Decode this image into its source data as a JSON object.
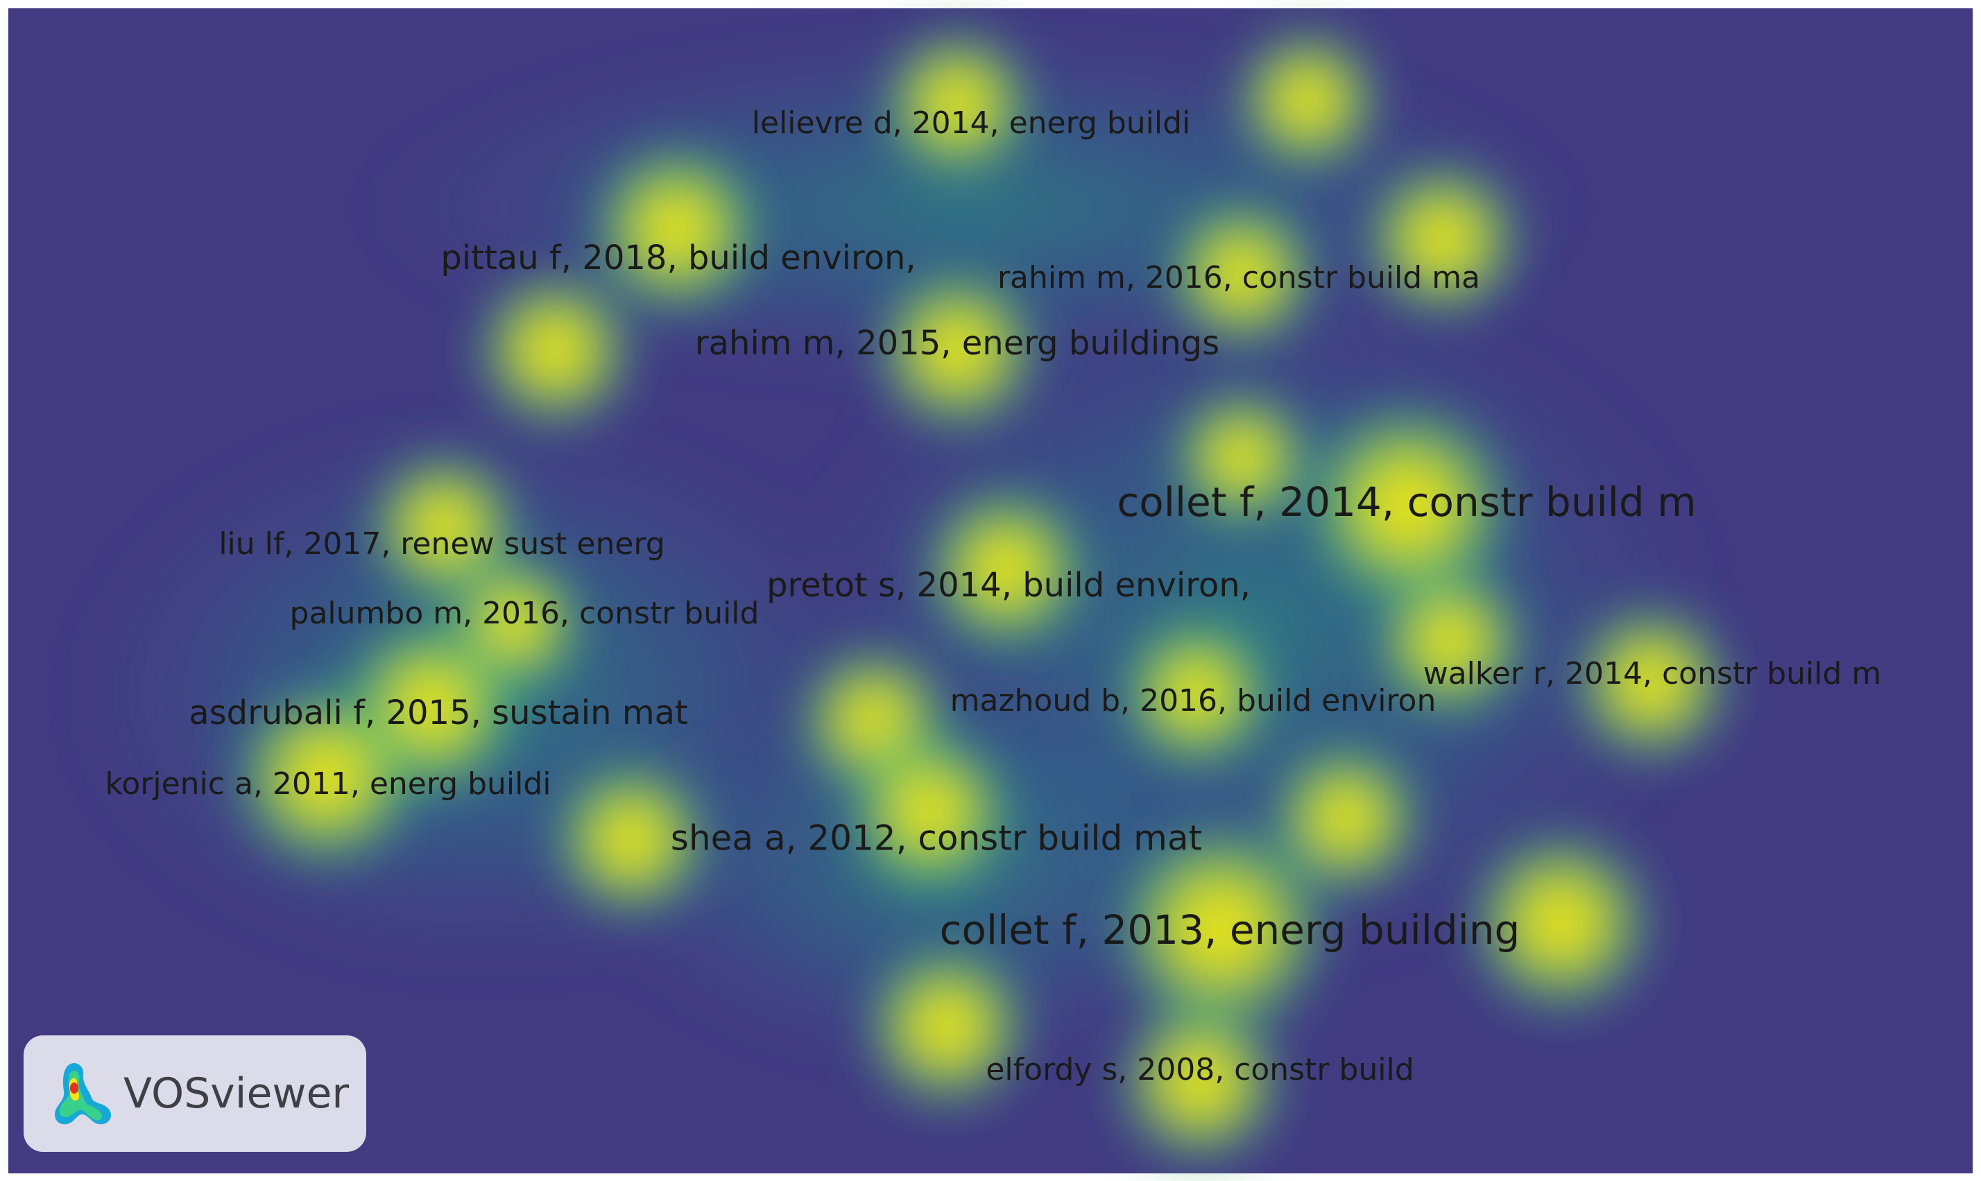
{
  "window": {
    "app_name": "VOSviewer"
  },
  "map": {
    "view": "density visualization",
    "colors": {
      "background": "#423b82",
      "low_density": "#2c8c8c",
      "mid_density": "#5fc862",
      "high_density": "#d8e21e",
      "peak_density": "#fbe619",
      "frame": "#ffffff"
    },
    "items": [
      {
        "label": "lelievre d, 2014, energ buildi",
        "weight": "small"
      },
      {
        "label": "pittau f, 2018, build environ,",
        "weight": "medium"
      },
      {
        "label": "rahim m, 2016, constr build ma",
        "weight": "small"
      },
      {
        "label": "rahim m, 2015, energ buildings",
        "weight": "medium"
      },
      {
        "label": "collet f, 2014, constr build m",
        "weight": "large"
      },
      {
        "label": "liu lf, 2017, renew sust energ",
        "weight": "small"
      },
      {
        "label": "pretot s, 2014, build environ,",
        "weight": "medium"
      },
      {
        "label": "palumbo m, 2016, constr build",
        "weight": "small"
      },
      {
        "label": "walker r, 2014, constr build m",
        "weight": "small"
      },
      {
        "label": "mazhoud b, 2016, build environ",
        "weight": "small"
      },
      {
        "label": "asdrubali f, 2015, sustain mat",
        "weight": "medium"
      },
      {
        "label": "korjenic a, 2011, energ buildi",
        "weight": "small"
      },
      {
        "label": "shea a, 2012, constr build mat",
        "weight": "medium"
      },
      {
        "label": "collet f, 2013, energ building",
        "weight": "large"
      },
      {
        "label": "elfordy s, 2008, constr build",
        "weight": "small"
      }
    ]
  },
  "badge": {
    "text": "VOSviewer",
    "logo_icon": "vosviewer-logo-icon"
  }
}
